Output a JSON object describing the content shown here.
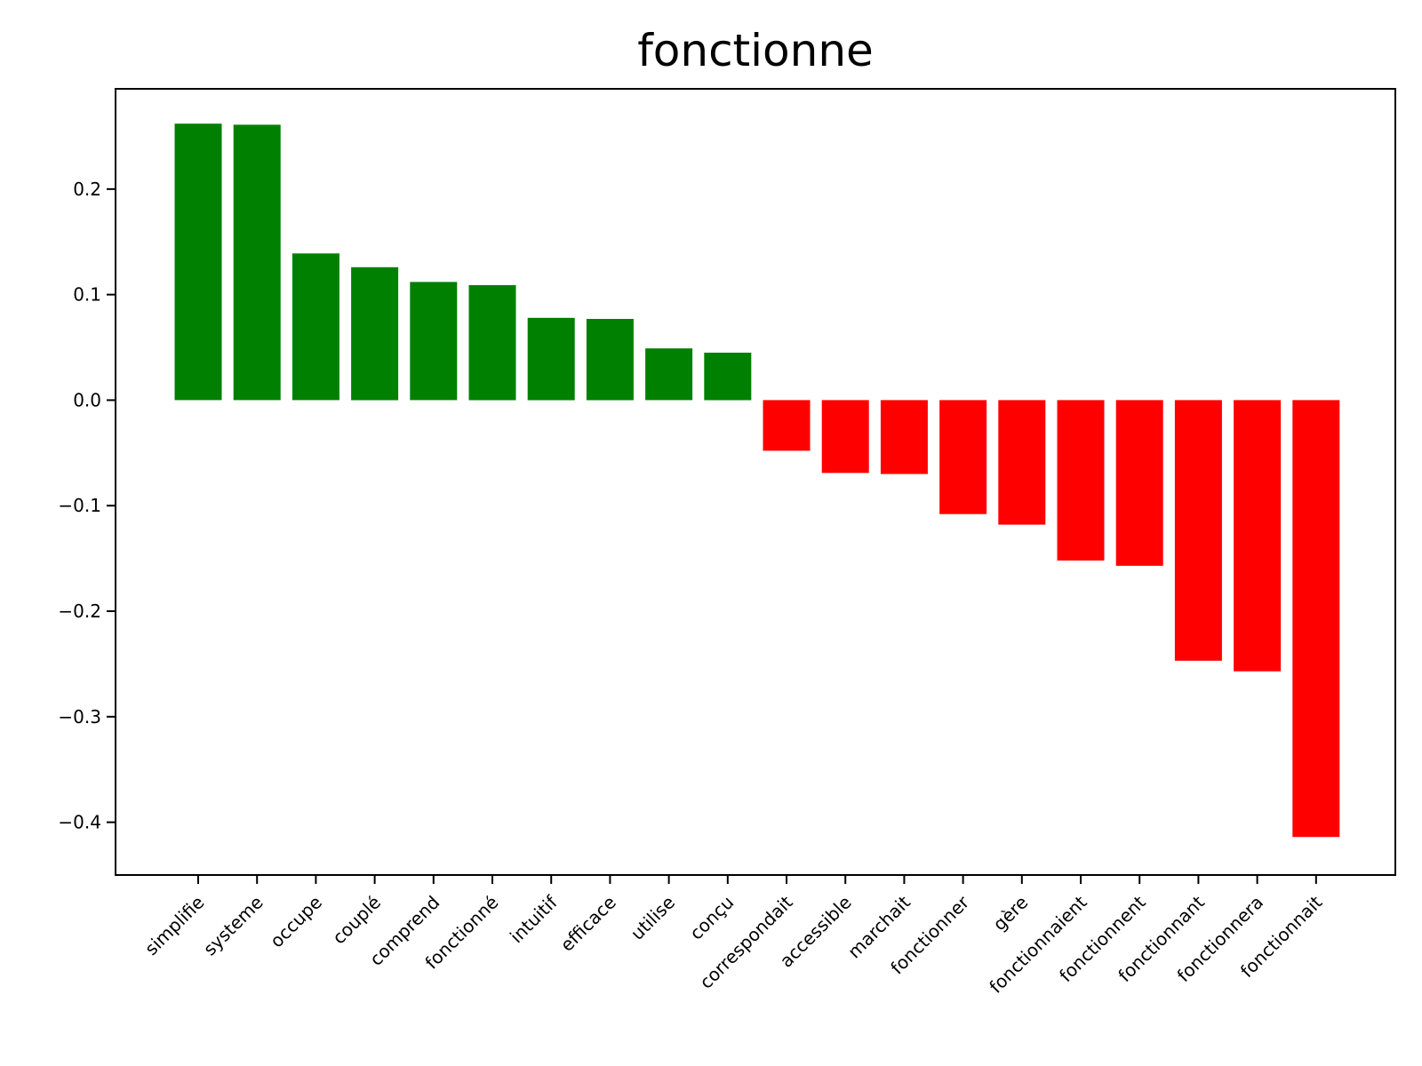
{
  "chart_data": {
    "type": "bar",
    "title": "fonctionne",
    "xlabel": "",
    "ylabel": "",
    "ylim": [
      -0.45,
      0.295
    ],
    "yticks": [
      0.2,
      0.1,
      0.0,
      -0.1,
      -0.2,
      -0.3,
      -0.4
    ],
    "ytick_labels": [
      "0.2",
      "0.1",
      "0.0",
      "−0.1",
      "−0.2",
      "−0.3",
      "−0.4"
    ],
    "categories": [
      "simplifie",
      "systeme",
      "occupe",
      "couplé",
      "comprend",
      "fonctionné",
      "intuitif",
      "efficace",
      "utilise",
      "conçu",
      "correspondait",
      "accessible",
      "marchait",
      "fonctionner",
      "gère",
      "fonctionnaient",
      "fonctionnent",
      "fonctionnant",
      "fonctionnera",
      "fonctionnait"
    ],
    "values": [
      0.262,
      0.261,
      0.139,
      0.126,
      0.112,
      0.109,
      0.078,
      0.077,
      0.049,
      0.045,
      -0.048,
      -0.069,
      -0.07,
      -0.108,
      -0.118,
      -0.152,
      -0.157,
      -0.247,
      -0.257,
      -0.414
    ],
    "colors": {
      "positive": "#008000",
      "negative": "#ff0000"
    },
    "grid": false
  }
}
